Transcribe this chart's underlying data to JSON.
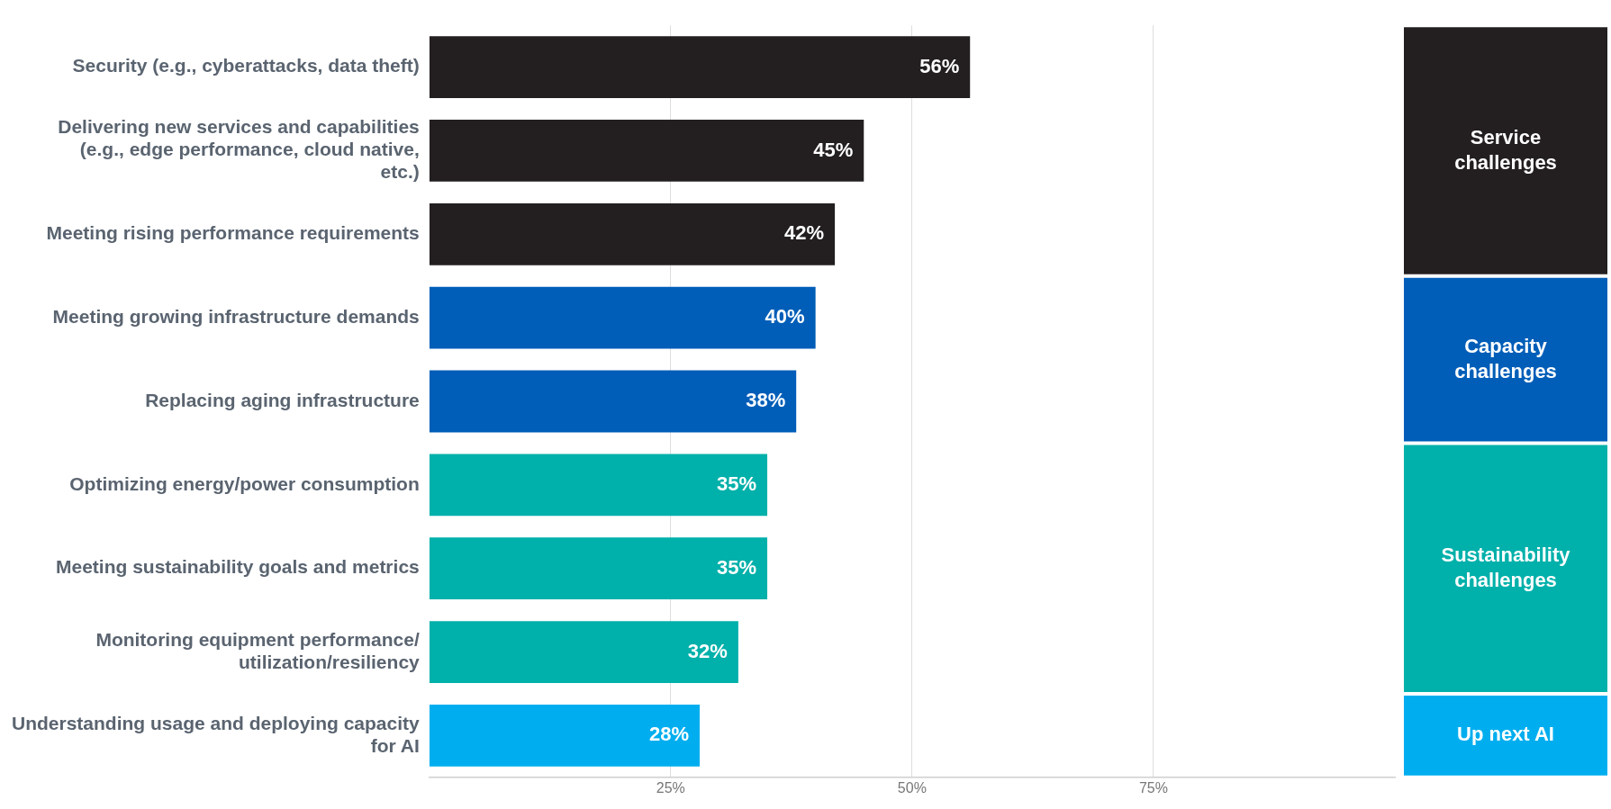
{
  "chart_data": {
    "type": "bar",
    "orientation": "horizontal",
    "categories": [
      "Security (e.g., cyberattacks, data theft)",
      "Delivering new services and capabilities (e.g., edge performance, cloud native, etc.)",
      "Meeting rising performance requirements",
      "Meeting growing infrastructure demands",
      "Replacing aging infrastructure",
      "Optimizing energy/power consumption",
      "Meeting sustainability goals and metrics",
      "Monitoring equipment performance/ utilization/resiliency",
      "Understanding usage and deploying capacity for AI"
    ],
    "values": [
      56,
      45,
      42,
      40,
      38,
      35,
      35,
      32,
      28
    ],
    "colors": [
      "#231f20",
      "#231f20",
      "#231f20",
      "#005eb8",
      "#005eb8",
      "#00b0aa",
      "#00b0aa",
      "#00b0aa",
      "#00aeef"
    ],
    "value_labels": [
      "56%",
      "45%",
      "42%",
      "40%",
      "38%",
      "35%",
      "35%",
      "32%",
      "28%"
    ],
    "xlim": [
      0,
      100
    ],
    "xticks": [
      {
        "value": 25,
        "label": "25%"
      },
      {
        "value": 50,
        "label": "50%"
      },
      {
        "value": 75,
        "label": "75%"
      }
    ],
    "grid": "x",
    "annotations": [
      "Service challenges",
      "Capacity challenges",
      "Sustainability challenges",
      "Up next AI"
    ]
  }
}
